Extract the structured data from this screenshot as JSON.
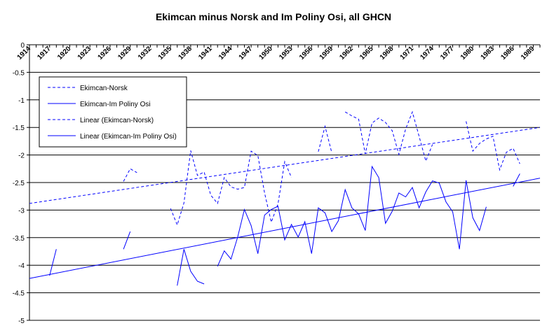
{
  "chart_data": {
    "type": "line",
    "title": "Ekimcan minus Norsk and Im Poliny Osi, all GHCN",
    "xlabel": "",
    "ylabel": "",
    "x_range": [
      1914,
      1990
    ],
    "ylim": [
      -5,
      0
    ],
    "y_ticks": [
      0,
      -0.5,
      -1,
      -1.5,
      -2,
      -2.5,
      -3,
      -3.5,
      -4,
      -4.5,
      -5
    ],
    "x_ticks": [
      1914,
      1917,
      1920,
      1923,
      1926,
      1929,
      1932,
      1935,
      1938,
      1941,
      1944,
      1947,
      1950,
      1953,
      1956,
      1959,
      1962,
      1965,
      1968,
      1971,
      1974,
      1977,
      1980,
      1983,
      1986,
      1989
    ],
    "grid": "horizontal",
    "legend_position": "top-left",
    "colors": {
      "series": "#0000ff",
      "axis": "#000000",
      "grid": "#000000"
    },
    "series": [
      {
        "name": "Ekimcan-Norsk",
        "style": "dashed",
        "values": [
          [
            1928,
            -2.48
          ],
          [
            1929,
            -2.25
          ],
          [
            1930,
            -2.32
          ],
          null,
          [
            1935,
            -2.97
          ],
          [
            1936,
            -3.27
          ],
          [
            1937,
            -2.87
          ],
          [
            1938,
            -1.92
          ],
          [
            1939,
            -2.37
          ],
          [
            1940,
            -2.31
          ],
          [
            1941,
            -2.73
          ],
          [
            1942,
            -2.88
          ],
          [
            1943,
            -2.41
          ],
          [
            1944,
            -2.58
          ],
          [
            1945,
            -2.62
          ],
          [
            1946,
            -2.59
          ],
          [
            1947,
            -1.93
          ],
          [
            1948,
            -2.01
          ],
          [
            1949,
            -2.69
          ],
          [
            1950,
            -3.22
          ],
          [
            1951,
            -2.89
          ],
          [
            1952,
            -2.12
          ],
          [
            1953,
            -2.41
          ],
          null,
          [
            1957,
            -1.94
          ],
          [
            1958,
            -1.48
          ],
          [
            1959,
            -1.96
          ],
          null,
          [
            1961,
            -1.22
          ],
          [
            1962,
            -1.29
          ],
          [
            1963,
            -1.35
          ],
          [
            1964,
            -1.98
          ],
          [
            1965,
            -1.42
          ],
          [
            1966,
            -1.33
          ],
          [
            1967,
            -1.41
          ],
          [
            1968,
            -1.56
          ],
          [
            1969,
            -1.99
          ],
          [
            1970,
            -1.53
          ],
          [
            1971,
            -1.22
          ],
          [
            1972,
            -1.66
          ],
          [
            1973,
            -2.11
          ],
          [
            1974,
            -1.81
          ],
          null,
          [
            1979,
            -1.39
          ],
          [
            1980,
            -1.93
          ],
          [
            1981,
            -1.79
          ],
          [
            1982,
            -1.71
          ],
          [
            1983,
            -1.66
          ],
          [
            1984,
            -2.27
          ],
          [
            1985,
            -1.95
          ],
          [
            1986,
            -1.88
          ],
          [
            1987,
            -2.16
          ]
        ]
      },
      {
        "name": "Ekimcan-Im Poliny Osi",
        "style": "solid",
        "values": [
          [
            1917,
            -4.19
          ],
          [
            1918,
            -3.71
          ],
          null,
          [
            1928,
            -3.71
          ],
          [
            1929,
            -3.39
          ],
          null,
          [
            1936,
            -4.37
          ],
          [
            1937,
            -3.71
          ],
          [
            1938,
            -4.11
          ],
          [
            1939,
            -4.29
          ],
          [
            1940,
            -4.34
          ],
          null,
          [
            1942,
            -4.02
          ],
          [
            1943,
            -3.74
          ],
          [
            1944,
            -3.89
          ],
          [
            1945,
            -3.49
          ],
          [
            1946,
            -2.99
          ],
          [
            1947,
            -3.28
          ],
          [
            1948,
            -3.79
          ],
          [
            1949,
            -3.09
          ],
          [
            1950,
            -2.99
          ],
          [
            1951,
            -2.93
          ],
          [
            1952,
            -3.54
          ],
          [
            1953,
            -3.26
          ],
          [
            1954,
            -3.49
          ],
          [
            1955,
            -3.21
          ],
          [
            1956,
            -3.79
          ],
          [
            1957,
            -2.96
          ],
          [
            1958,
            -3.05
          ],
          [
            1959,
            -3.39
          ],
          [
            1960,
            -3.19
          ],
          [
            1961,
            -2.63
          ],
          [
            1962,
            -2.96
          ],
          [
            1963,
            -3.07
          ],
          [
            1964,
            -3.37
          ],
          [
            1965,
            -2.21
          ],
          [
            1966,
            -2.41
          ],
          [
            1967,
            -3.24
          ],
          [
            1968,
            -3.02
          ],
          [
            1969,
            -2.69
          ],
          [
            1970,
            -2.76
          ],
          [
            1971,
            -2.59
          ],
          [
            1972,
            -2.96
          ],
          [
            1973,
            -2.67
          ],
          [
            1974,
            -2.47
          ],
          [
            1975,
            -2.51
          ],
          [
            1976,
            -2.85
          ],
          [
            1977,
            -3.03
          ],
          [
            1978,
            -3.71
          ],
          [
            1979,
            -2.46
          ],
          [
            1980,
            -3.14
          ],
          [
            1981,
            -3.37
          ],
          [
            1982,
            -2.94
          ],
          null,
          [
            1986,
            -2.57
          ],
          [
            1987,
            -2.34
          ]
        ]
      },
      {
        "name": "Linear (Ekimcan-Norsk)",
        "style": "dashed",
        "trendline": true,
        "values": [
          [
            1914,
            -2.88
          ],
          [
            1990,
            -1.5
          ]
        ]
      },
      {
        "name": "Linear (Ekimcan-Im Poliny Osi)",
        "style": "solid",
        "trendline": true,
        "values": [
          [
            1914,
            -4.24
          ],
          [
            1990,
            -2.42
          ]
        ]
      }
    ]
  }
}
